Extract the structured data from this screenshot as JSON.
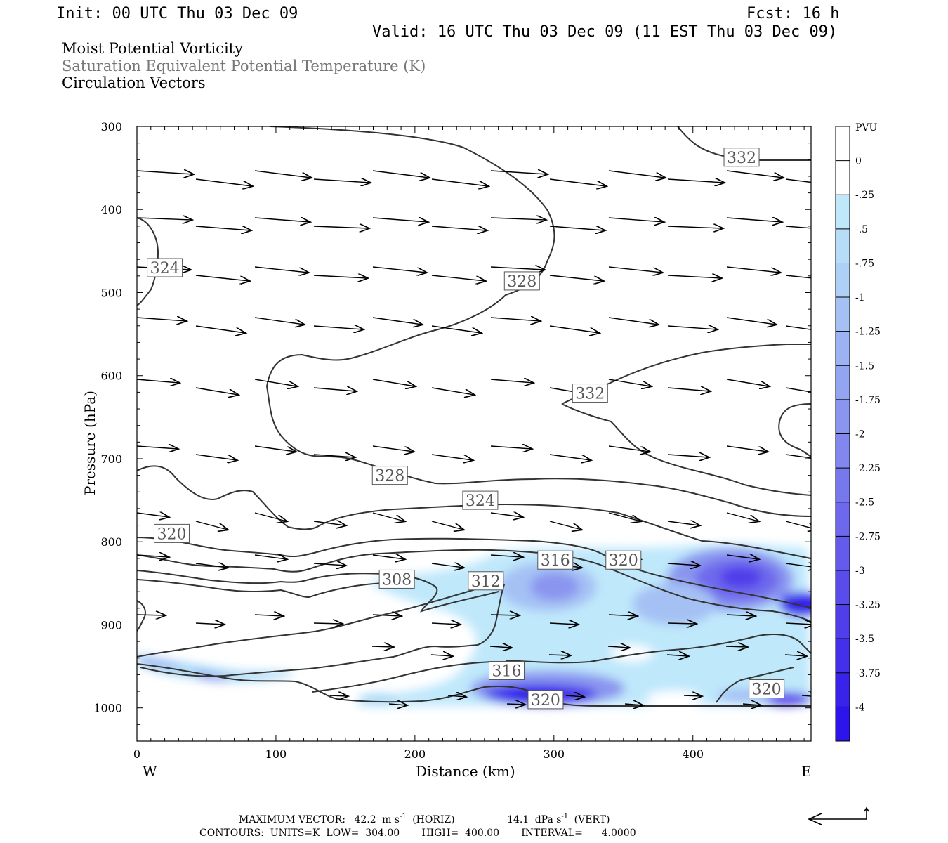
{
  "header": {
    "init": "Init: 00 UTC Thu 03 Dec 09",
    "fcst": "Fcst:   16 h",
    "valid": "Valid: 16 UTC Thu 03 Dec 09 (11 EST Thu 03 Dec 09)",
    "fields": [
      "Moist Potential Vorticity",
      "Saturation Equivalent Potential Temperature (K)",
      "Circulation Vectors"
    ]
  },
  "chart_data": {
    "type": "heatmap",
    "xlabel": "Distance (km)",
    "ylabel": "Pressure (hPa)",
    "xlim": [
      0,
      485
    ],
    "ylim": [
      300,
      1040
    ],
    "x_ticks": [
      0,
      100,
      200,
      300,
      400
    ],
    "y_ticks": [
      300,
      400,
      500,
      600,
      700,
      800,
      900,
      1000
    ],
    "x_end_labels": {
      "left": "W",
      "right": "E"
    },
    "colorbar": {
      "unit": "PVU",
      "levels": [
        "0",
        "-.25",
        "-.5",
        "-.75",
        "-1",
        "-1.25",
        "-1.5",
        "-1.75",
        "-2",
        "-2.25",
        "-2.5",
        "-2.75",
        "-3",
        "-3.25",
        "-3.5",
        "-3.75",
        "-4"
      ],
      "colors": [
        "#ffffff",
        "#ffffff",
        "#bfe8fb",
        "#b7dcf8",
        "#aecff6",
        "#a5c1f4",
        "#9cb2f2",
        "#93a4f1",
        "#8a95ef",
        "#8187ee",
        "#7878ed",
        "#6e69ec",
        "#645aeb",
        "#5a4cea",
        "#4f3eea",
        "#4430ea",
        "#3922ea",
        "#2c14ea"
      ]
    },
    "contour_labels": [
      {
        "text": "332",
        "x": 435,
        "p": 337
      },
      {
        "text": "324",
        "x": 20,
        "p": 470
      },
      {
        "text": "328",
        "x": 277,
        "p": 486
      },
      {
        "text": "332",
        "x": 326,
        "p": 621
      },
      {
        "text": "328",
        "x": 182,
        "p": 720
      },
      {
        "text": "324",
        "x": 247,
        "p": 750
      },
      {
        "text": "320",
        "x": 25,
        "p": 790
      },
      {
        "text": "316",
        "x": 301,
        "p": 822
      },
      {
        "text": "320",
        "x": 350,
        "p": 822
      },
      {
        "text": "308",
        "x": 187,
        "p": 845
      },
      {
        "text": "312",
        "x": 251,
        "p": 847
      },
      {
        "text": "316",
        "x": 266,
        "p": 955
      },
      {
        "text": "320",
        "x": 453,
        "p": 977
      },
      {
        "text": "320",
        "x": 294,
        "p": 990
      }
    ],
    "max_vector": {
      "prefix": "MAXIMUM VECTOR:",
      "horiz_value": "42.2",
      "horiz_units": "m s",
      "horiz_suffix": "(HORIZ)",
      "vert_value": "14.1",
      "vert_units": "dPa s",
      "vert_suffix": "(VERT)",
      "exponent": "-1"
    },
    "contour_info": "CONTOURS:  UNITS=K  LOW=  304.00       HIGH=  400.00       INTERVAL=      4.0000"
  },
  "colors": {
    "contour": "#333333",
    "frame": "#000000"
  }
}
